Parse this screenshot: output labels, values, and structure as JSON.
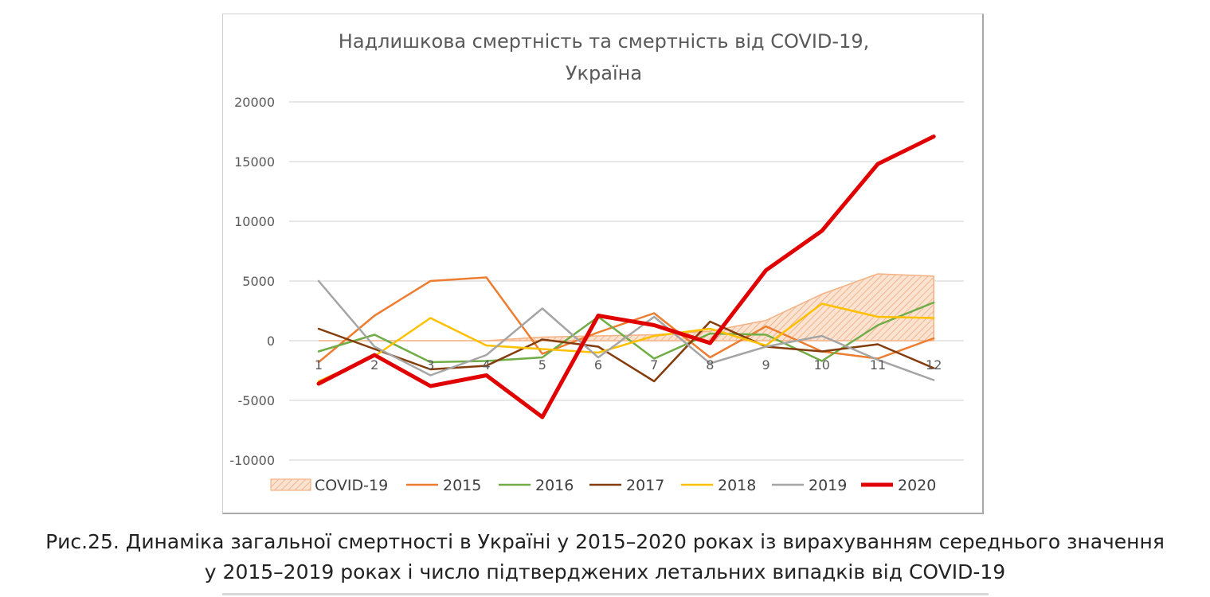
{
  "chart_data": {
    "type": "line",
    "title": "Надлишкова смертність та смертність від COVID-19, Україна",
    "title_lines": [
      "Надлишкова смертність та смертність від COVID-19,",
      "Україна"
    ],
    "categories": [
      "1",
      "2",
      "3",
      "4",
      "5",
      "6",
      "7",
      "8",
      "9",
      "10",
      "11",
      "12"
    ],
    "ylim": [
      -10000,
      20000
    ],
    "yticks": [
      20000,
      15000,
      10000,
      5000,
      0,
      -5000,
      -10000
    ],
    "grid": true,
    "legend_position": "bottom",
    "area": {
      "name": "COVID-19",
      "values": [
        0,
        0,
        0,
        0,
        300,
        400,
        500,
        800,
        1700,
        3900,
        5600,
        5400
      ],
      "color": "#f4b183"
    },
    "series": [
      {
        "name": "2015",
        "color": "#ed7d31",
        "width": 2.5,
        "values": [
          -1800,
          2100,
          5000,
          5300,
          -1100,
          700,
          2300,
          -1400,
          1200,
          -900,
          -1500,
          200
        ]
      },
      {
        "name": "2016",
        "color": "#70ad47",
        "width": 2.5,
        "values": [
          -900,
          500,
          -1800,
          -1700,
          -1400,
          2000,
          -1500,
          600,
          500,
          -1700,
          1300,
          3200
        ]
      },
      {
        "name": "2017",
        "color": "#843c0c",
        "width": 2.5,
        "values": [
          1000,
          -700,
          -2400,
          -2100,
          100,
          -500,
          -3400,
          1600,
          -500,
          -900,
          -300,
          -2300
        ]
      },
      {
        "name": "2018",
        "color": "#ffc000",
        "width": 2.5,
        "values": [
          -3400,
          -1300,
          1900,
          -400,
          -700,
          -1000,
          400,
          1000,
          -400,
          3100,
          2000,
          1900
        ]
      },
      {
        "name": "2019",
        "color": "#a5a5a5",
        "width": 2.5,
        "values": [
          5000,
          -500,
          -2900,
          -1200,
          2700,
          -1400,
          2000,
          -1900,
          -500,
          400,
          -1600,
          -3300
        ]
      },
      {
        "name": "2020",
        "color": "#e00000",
        "width": 5,
        "values": [
          -3600,
          -1200,
          -3800,
          -2900,
          -6400,
          2100,
          1300,
          -200,
          5900,
          9200,
          14800,
          17100
        ]
      }
    ]
  },
  "caption": {
    "line1": "Рис.25. Динаміка загальної смертності в Україні у 2015–2020 роках із вирахуванням середнього значення",
    "line2": "у 2015–2019 роках і число підтверджених летальних випадків від COVID-19"
  }
}
